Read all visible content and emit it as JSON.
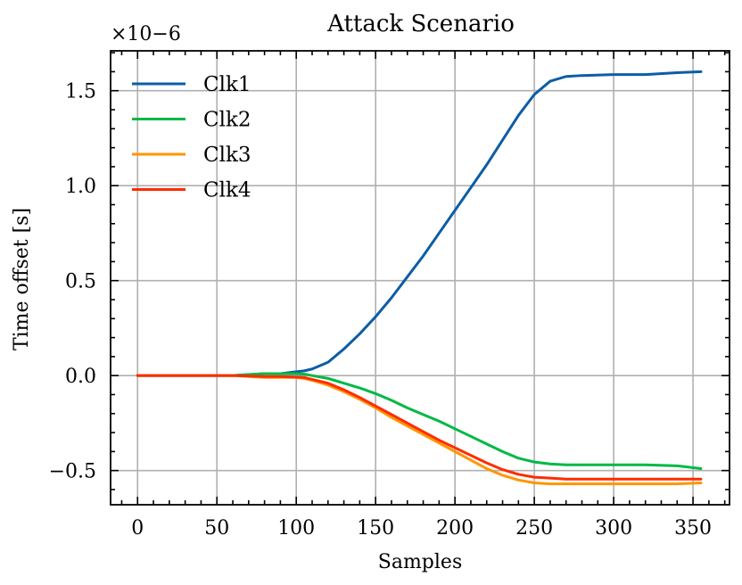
{
  "chart_data": {
    "type": "line",
    "title": "Attack Scenario",
    "xlabel": "Samples",
    "ylabel": "Time offset [s]",
    "y_scale_label": "×10−6",
    "y_scale_factor": 1e-06,
    "xlim": [
      -17,
      373
    ],
    "ylim": [
      -0.68,
      1.71
    ],
    "xticks": [
      0,
      50,
      100,
      150,
      200,
      250,
      300,
      350
    ],
    "xtick_labels": [
      "0",
      "50",
      "100",
      "150",
      "200",
      "250",
      "300",
      "350"
    ],
    "yticks": [
      -0.5,
      0.0,
      0.5,
      1.0,
      1.5
    ],
    "ytick_labels": [
      "−0.5",
      "0.0",
      "0.5",
      "1.0",
      "1.5"
    ],
    "grid": true,
    "legend_position": "top-left",
    "x": [
      0,
      20,
      40,
      60,
      80,
      90,
      100,
      105,
      110,
      120,
      130,
      140,
      150,
      160,
      170,
      180,
      190,
      200,
      210,
      220,
      230,
      240,
      250,
      260,
      270,
      280,
      300,
      320,
      340,
      355
    ],
    "series": [
      {
        "name": "Clk1",
        "color": "#0C5DA5",
        "values": [
          0.0,
          0.0,
          0.0,
          0.0,
          0.01,
          0.01,
          0.02,
          0.025,
          0.035,
          0.07,
          0.14,
          0.22,
          0.31,
          0.41,
          0.52,
          0.63,
          0.75,
          0.87,
          0.99,
          1.11,
          1.24,
          1.37,
          1.48,
          1.55,
          1.575,
          1.58,
          1.585,
          1.585,
          1.595,
          1.6
        ]
      },
      {
        "name": "Clk2",
        "color": "#00B945",
        "values": [
          0.0,
          0.0,
          0.0,
          0.0,
          0.01,
          0.01,
          0.01,
          0.008,
          0.0,
          -0.015,
          -0.04,
          -0.065,
          -0.095,
          -0.13,
          -0.17,
          -0.205,
          -0.24,
          -0.28,
          -0.32,
          -0.36,
          -0.4,
          -0.435,
          -0.455,
          -0.465,
          -0.47,
          -0.47,
          -0.47,
          -0.47,
          -0.475,
          -0.49
        ]
      },
      {
        "name": "Clk3",
        "color": "#FF9500",
        "values": [
          0.0,
          0.0,
          0.0,
          0.0,
          -0.01,
          -0.01,
          -0.01,
          -0.015,
          -0.025,
          -0.05,
          -0.085,
          -0.125,
          -0.17,
          -0.22,
          -0.265,
          -0.31,
          -0.355,
          -0.4,
          -0.445,
          -0.49,
          -0.525,
          -0.55,
          -0.565,
          -0.57,
          -0.57,
          -0.57,
          -0.57,
          -0.57,
          -0.57,
          -0.565
        ]
      },
      {
        "name": "Clk4",
        "color": "#FF2C00",
        "values": [
          0.0,
          0.0,
          0.0,
          0.0,
          -0.005,
          -0.005,
          -0.008,
          -0.01,
          -0.02,
          -0.04,
          -0.075,
          -0.115,
          -0.16,
          -0.205,
          -0.25,
          -0.295,
          -0.34,
          -0.38,
          -0.42,
          -0.46,
          -0.495,
          -0.52,
          -0.535,
          -0.54,
          -0.545,
          -0.545,
          -0.545,
          -0.545,
          -0.545,
          -0.545
        ]
      }
    ]
  }
}
